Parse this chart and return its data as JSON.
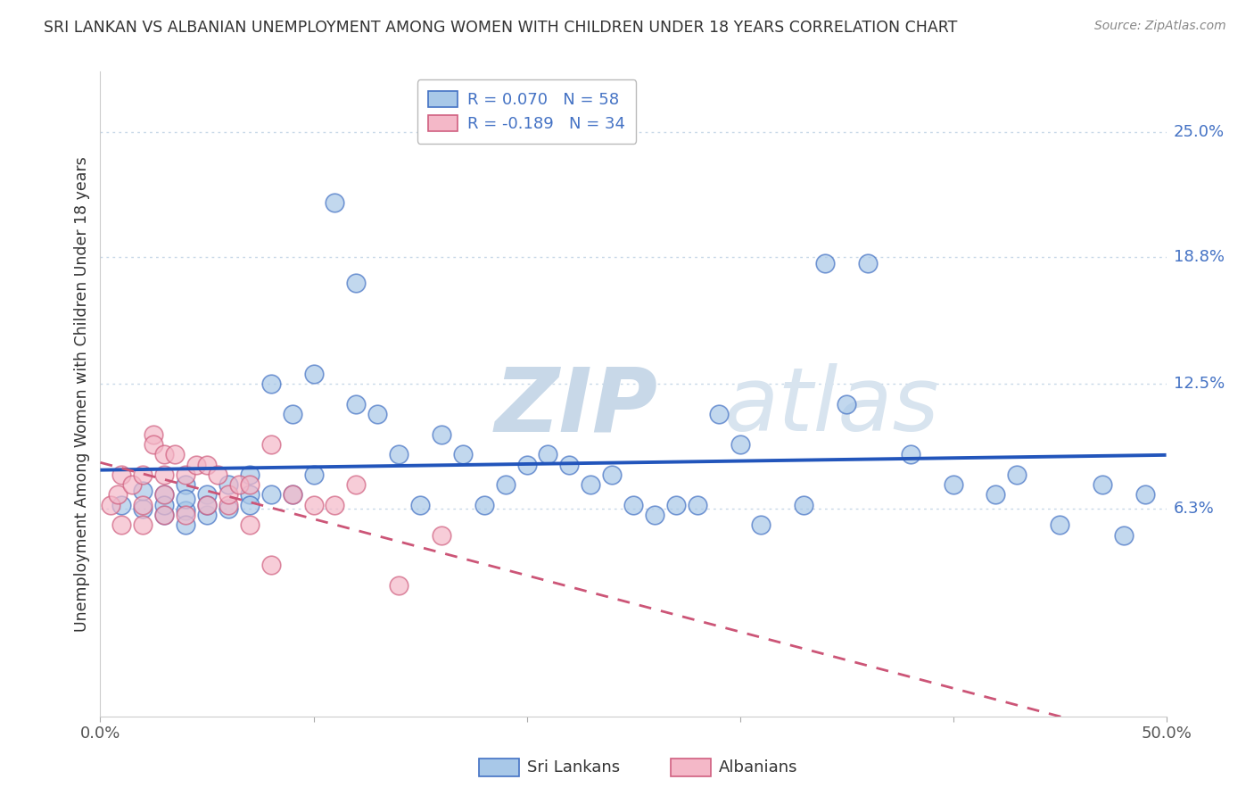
{
  "title": "SRI LANKAN VS ALBANIAN UNEMPLOYMENT AMONG WOMEN WITH CHILDREN UNDER 18 YEARS CORRELATION CHART",
  "source": "Source: ZipAtlas.com",
  "ylabel": "Unemployment Among Women with Children Under 18 years",
  "y_tick_labels_right": [
    "6.3%",
    "12.5%",
    "18.8%",
    "25.0%"
  ],
  "y_tick_values_right": [
    0.063,
    0.125,
    0.188,
    0.25
  ],
  "xlim": [
    0.0,
    0.5
  ],
  "ylim": [
    -0.04,
    0.28
  ],
  "sri_lankan_fill": "#a8c8e8",
  "sri_lankan_edge": "#4472c4",
  "albanian_fill": "#f4b8c8",
  "albanian_edge": "#d06080",
  "sri_lankan_line_color": "#2255bb",
  "albanian_line_color": "#cc5577",
  "legend_R_sri": "R = 0.070",
  "legend_N_sri": "N = 58",
  "legend_R_alb": "R = -0.189",
  "legend_N_alb": "N = 34",
  "sri_lankan_x": [
    0.01,
    0.02,
    0.02,
    0.03,
    0.03,
    0.03,
    0.04,
    0.04,
    0.04,
    0.04,
    0.05,
    0.05,
    0.05,
    0.06,
    0.06,
    0.07,
    0.07,
    0.07,
    0.08,
    0.08,
    0.09,
    0.09,
    0.1,
    0.1,
    0.11,
    0.12,
    0.12,
    0.13,
    0.14,
    0.15,
    0.16,
    0.17,
    0.18,
    0.19,
    0.2,
    0.21,
    0.22,
    0.23,
    0.24,
    0.25,
    0.26,
    0.27,
    0.28,
    0.29,
    0.3,
    0.31,
    0.33,
    0.34,
    0.35,
    0.36,
    0.38,
    0.4,
    0.42,
    0.43,
    0.45,
    0.47,
    0.48,
    0.49
  ],
  "sri_lankan_y": [
    0.065,
    0.063,
    0.072,
    0.06,
    0.07,
    0.065,
    0.075,
    0.062,
    0.055,
    0.068,
    0.06,
    0.07,
    0.065,
    0.075,
    0.063,
    0.08,
    0.07,
    0.065,
    0.125,
    0.07,
    0.11,
    0.07,
    0.13,
    0.08,
    0.215,
    0.175,
    0.115,
    0.11,
    0.09,
    0.065,
    0.1,
    0.09,
    0.065,
    0.075,
    0.085,
    0.09,
    0.085,
    0.075,
    0.08,
    0.065,
    0.06,
    0.065,
    0.065,
    0.11,
    0.095,
    0.055,
    0.065,
    0.185,
    0.115,
    0.185,
    0.09,
    0.075,
    0.07,
    0.08,
    0.055,
    0.075,
    0.05,
    0.07
  ],
  "albanian_x": [
    0.005,
    0.008,
    0.01,
    0.01,
    0.015,
    0.02,
    0.02,
    0.02,
    0.025,
    0.025,
    0.03,
    0.03,
    0.03,
    0.03,
    0.035,
    0.04,
    0.04,
    0.045,
    0.05,
    0.05,
    0.055,
    0.06,
    0.06,
    0.065,
    0.07,
    0.07,
    0.08,
    0.08,
    0.09,
    0.1,
    0.11,
    0.12,
    0.14,
    0.16
  ],
  "albanian_y": [
    0.065,
    0.07,
    0.08,
    0.055,
    0.075,
    0.08,
    0.065,
    0.055,
    0.1,
    0.095,
    0.09,
    0.07,
    0.06,
    0.08,
    0.09,
    0.08,
    0.06,
    0.085,
    0.085,
    0.065,
    0.08,
    0.065,
    0.07,
    0.075,
    0.075,
    0.055,
    0.095,
    0.035,
    0.07,
    0.065,
    0.065,
    0.075,
    0.025,
    0.05
  ],
  "background_color": "#ffffff",
  "grid_color": "#c8d8e8"
}
